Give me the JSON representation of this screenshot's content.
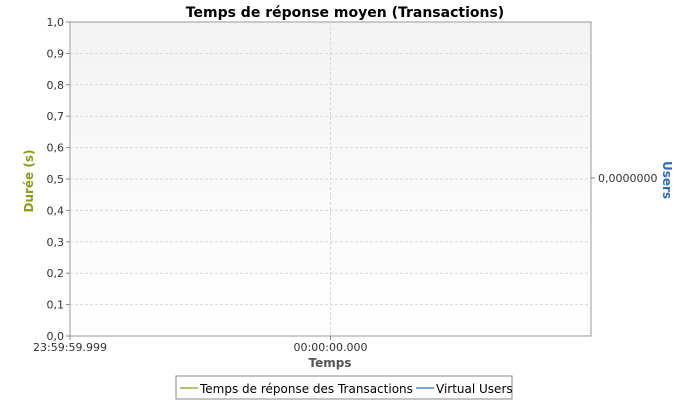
{
  "chart_data": {
    "type": "line",
    "title": "Temps de réponse moyen (Transactions)",
    "xlabel": "Temps",
    "ylabel": "Durée (s)",
    "y2label": "Users",
    "ylim": [
      0,
      1.0
    ],
    "yticks": [
      "0,0",
      "0,1",
      "0,2",
      "0,3",
      "0,4",
      "0,5",
      "0,6",
      "0,7",
      "0,8",
      "0,9",
      "1,0"
    ],
    "y2ticks": [
      "0,0000000"
    ],
    "xticks": [
      "23:59:59.999",
      "00:00:00.000"
    ],
    "grid": true,
    "legend_position": "bottom",
    "series": [
      {
        "name": "Temps de réponse des Transactions",
        "color": "#8c9a1e",
        "axis": "left",
        "values": []
      },
      {
        "name": "Virtual Users",
        "color": "#2f6cb5",
        "axis": "right",
        "values": []
      }
    ],
    "colors": {
      "left_axis_label": "#8c9a1e",
      "right_axis_label": "#2f6cb5"
    }
  }
}
